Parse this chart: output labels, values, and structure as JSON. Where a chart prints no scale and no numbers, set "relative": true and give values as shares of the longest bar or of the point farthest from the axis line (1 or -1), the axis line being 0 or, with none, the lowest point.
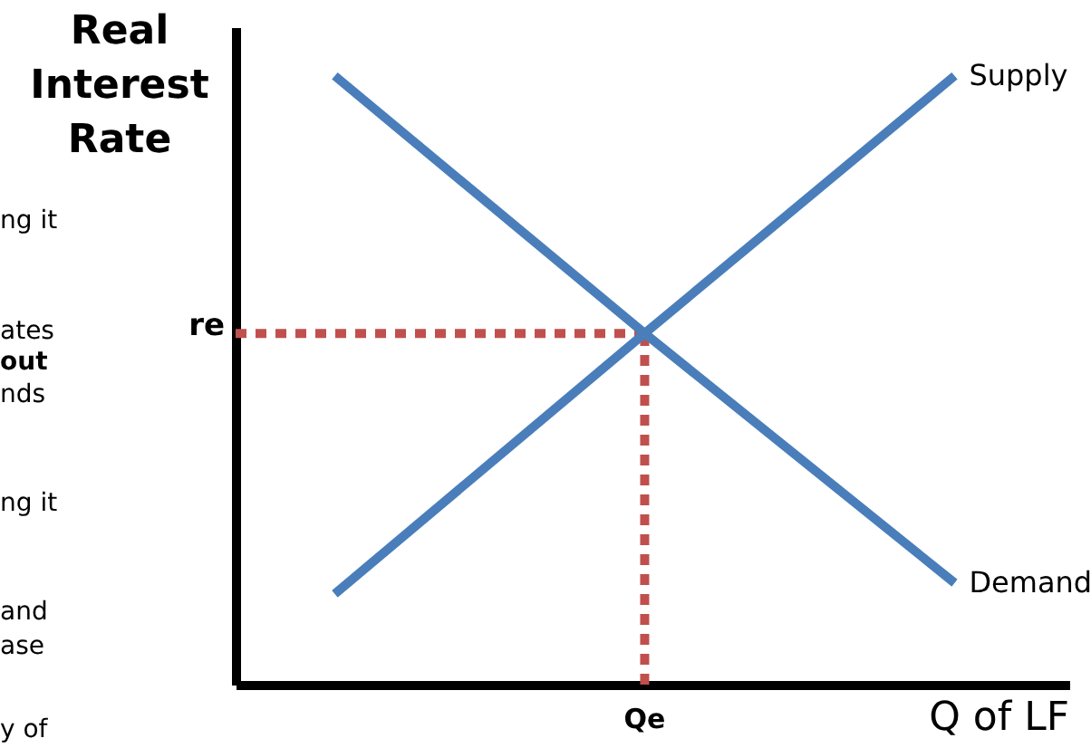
{
  "chart_data": {
    "type": "line",
    "relative": true,
    "grid": false,
    "marker": "none",
    "line_style": "solid",
    "ylabel": "Real\nInterest\nRate",
    "xlabel": "Q of LF",
    "categories": [
      null,
      null,
      null
    ],
    "series": [
      {
        "name": "Supply",
        "color": "#4a7ebb",
        "values": [
          0.149,
          0.577,
          1
        ]
      },
      {
        "name": "Demand",
        "color": "#4a7ebb",
        "values": [
          1,
          0.577,
          0.167
        ]
      }
    ],
    "ref_lines": [
      {
        "axis": "y",
        "value": 0.577,
        "label": "re",
        "color": "#c0504d",
        "line_style": "dotted"
      },
      {
        "axis": "x",
        "label": "Qe",
        "color": "#c0504d",
        "line_style": "dotted"
      }
    ],
    "annotations": [
      "ng it",
      "ates",
      "out",
      "nds",
      "ng it",
      "and",
      "ase",
      "y of"
    ]
  }
}
